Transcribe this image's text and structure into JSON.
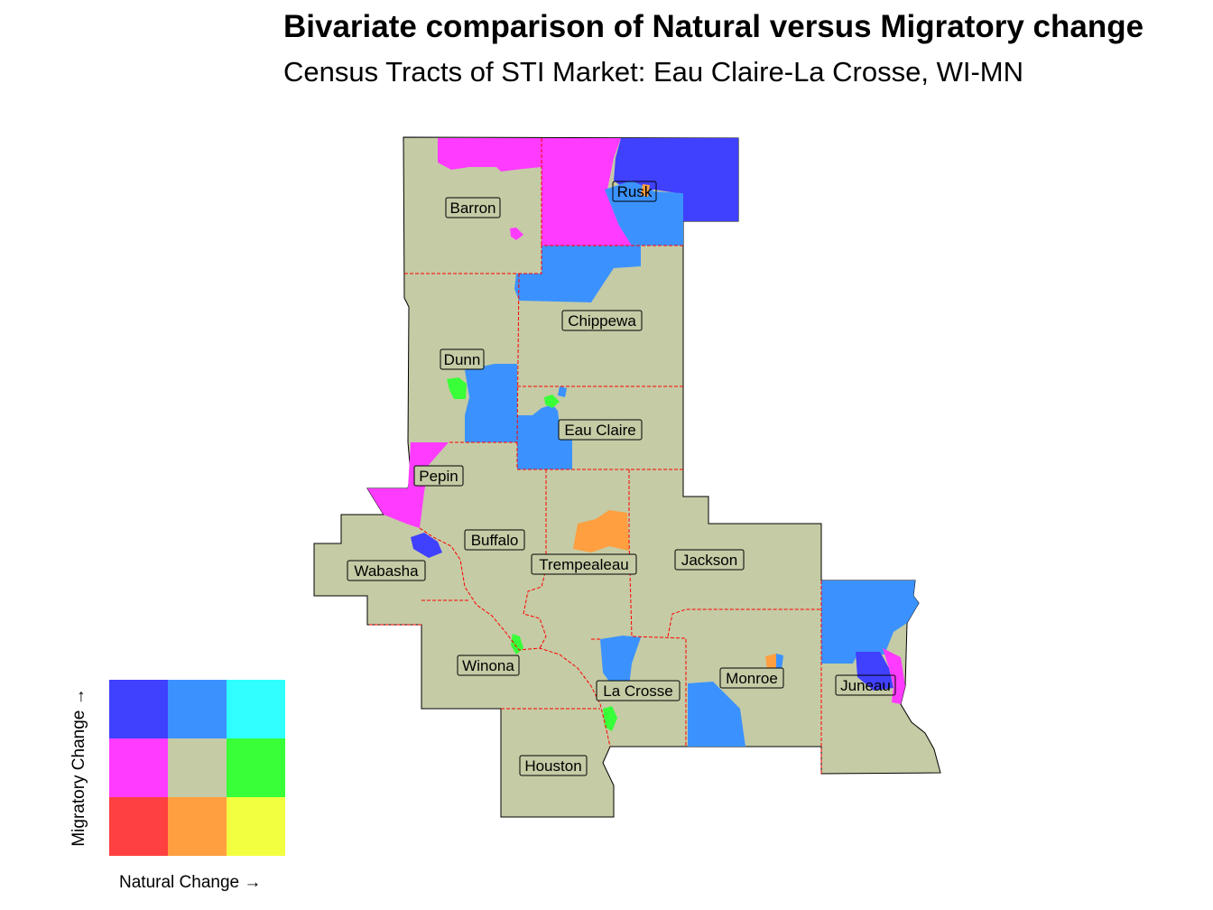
{
  "title": "Bivariate comparison of Natural versus Migratory change",
  "subtitle": "Census Tracts of STI Market: Eau Claire-La Crosse, WI-MN",
  "colors": {
    "base": "#c5cba5",
    "magenta": "#ff3bff",
    "blue_dark": "#4040ff",
    "blue_mid": "#3b92ff",
    "cyan": "#30ffff",
    "green": "#38ff38",
    "red": "#ff4040",
    "orange": "#ff9f40",
    "yellow": "#f2ff40",
    "border_county": "#ff0000"
  },
  "counties": [
    {
      "name": "Barron"
    },
    {
      "name": "Rusk"
    },
    {
      "name": "Chippewa"
    },
    {
      "name": "Dunn"
    },
    {
      "name": "Eau Claire"
    },
    {
      "name": "Pepin"
    },
    {
      "name": "Buffalo"
    },
    {
      "name": "Wabasha"
    },
    {
      "name": "Trempealeau"
    },
    {
      "name": "Jackson"
    },
    {
      "name": "Winona"
    },
    {
      "name": "La Crosse"
    },
    {
      "name": "Monroe"
    },
    {
      "name": "Juneau"
    },
    {
      "name": "Houston"
    }
  ],
  "legend": {
    "x_label": "Natural Change →",
    "y_label": "Migratory Change →",
    "cells": [
      [
        "#4040ff",
        "#3b92ff",
        "#30ffff"
      ],
      [
        "#ff3bff",
        "#c5cba5",
        "#38ff38"
      ],
      [
        "#ff4040",
        "#ff9f40",
        "#f2ff40"
      ]
    ]
  }
}
